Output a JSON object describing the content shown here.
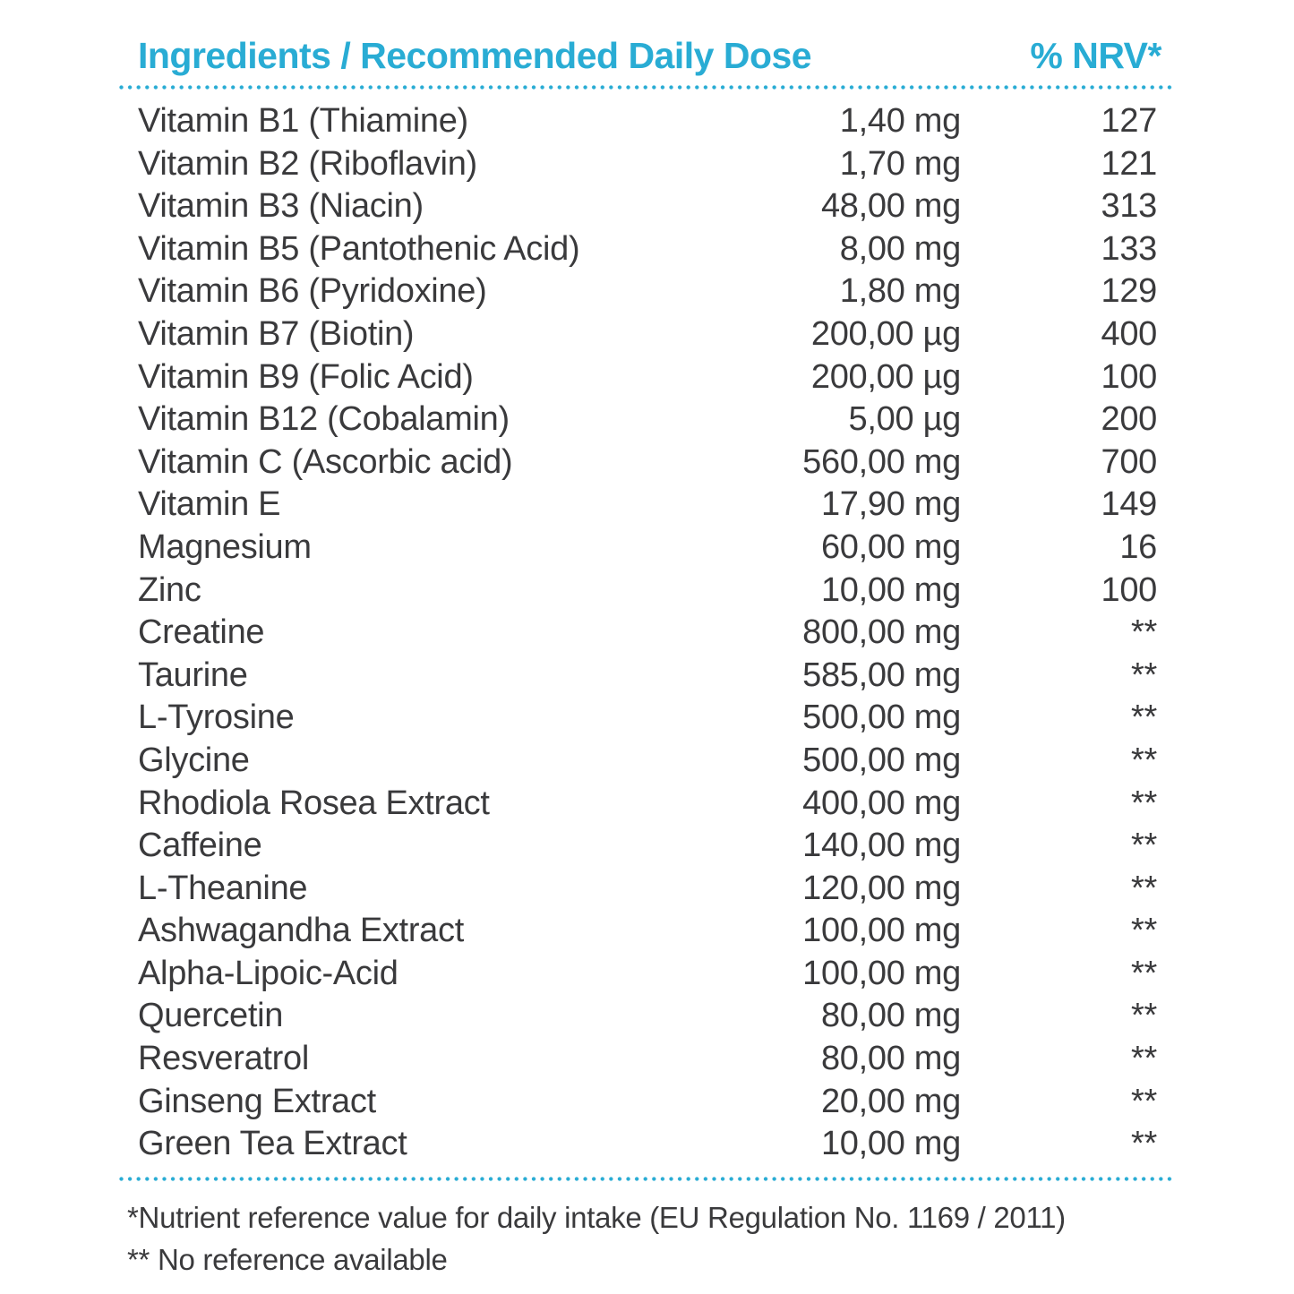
{
  "colors": {
    "accent": "#29acd4",
    "text": "#3a3a3c"
  },
  "table": {
    "header": {
      "ingredients_label": "Ingredients / Recommended Daily Dose",
      "nrv_label": "% NRV*"
    },
    "rows": [
      {
        "name": "Vitamin B1 (Thiamine)",
        "amount": "1,40 mg",
        "nrv": "127"
      },
      {
        "name": "Vitamin B2 (Riboflavin)",
        "amount": "1,70 mg",
        "nrv": "121"
      },
      {
        "name": "Vitamin B3 (Niacin)",
        "amount": "48,00 mg",
        "nrv": "313"
      },
      {
        "name": "Vitamin B5 (Pantothenic Acid)",
        "amount": "8,00 mg",
        "nrv": "133"
      },
      {
        "name": "Vitamin B6 (Pyridoxine)",
        "amount": "1,80 mg",
        "nrv": "129"
      },
      {
        "name": "Vitamin B7 (Biotin)",
        "amount": "200,00 µg",
        "nrv": "400"
      },
      {
        "name": "Vitamin B9 (Folic Acid)",
        "amount": "200,00 µg",
        "nrv": "100"
      },
      {
        "name": "Vitamin B12 (Cobalamin)",
        "amount": "5,00 µg",
        "nrv": "200"
      },
      {
        "name": "Vitamin C (Ascorbic acid)",
        "amount": "560,00 mg",
        "nrv": "700"
      },
      {
        "name": "Vitamin E",
        "amount": "17,90 mg",
        "nrv": "149"
      },
      {
        "name": "Magnesium",
        "amount": "60,00 mg",
        "nrv": "16"
      },
      {
        "name": "Zinc",
        "amount": "10,00 mg",
        "nrv": "100"
      },
      {
        "name": "Creatine",
        "amount": "800,00 mg",
        "nrv": "**"
      },
      {
        "name": "Taurine",
        "amount": "585,00 mg",
        "nrv": "**"
      },
      {
        "name": "L-Tyrosine",
        "amount": "500,00 mg",
        "nrv": "**"
      },
      {
        "name": "Glycine",
        "amount": "500,00 mg",
        "nrv": "**"
      },
      {
        "name": "Rhodiola Rosea Extract",
        "amount": "400,00 mg",
        "nrv": "**"
      },
      {
        "name": "Caffeine",
        "amount": "140,00 mg",
        "nrv": "**"
      },
      {
        "name": "L-Theanine",
        "amount": "120,00 mg",
        "nrv": "**"
      },
      {
        "name": "Ashwagandha Extract",
        "amount": "100,00 mg",
        "nrv": "**"
      },
      {
        "name": "Alpha-Lipoic-Acid",
        "amount": "100,00 mg",
        "nrv": "**"
      },
      {
        "name": "Quercetin",
        "amount": "80,00 mg",
        "nrv": "**"
      },
      {
        "name": "Resveratrol",
        "amount": "80,00 mg",
        "nrv": "**"
      },
      {
        "name": "Ginseng Extract",
        "amount": "20,00 mg",
        "nrv": "**"
      },
      {
        "name": "Green Tea Extract",
        "amount": "10,00 mg",
        "nrv": "**"
      }
    ],
    "footnotes": [
      "*Nutrient reference value for daily intake (EU Regulation No. 1169 / 2011)",
      "** No reference available"
    ]
  }
}
